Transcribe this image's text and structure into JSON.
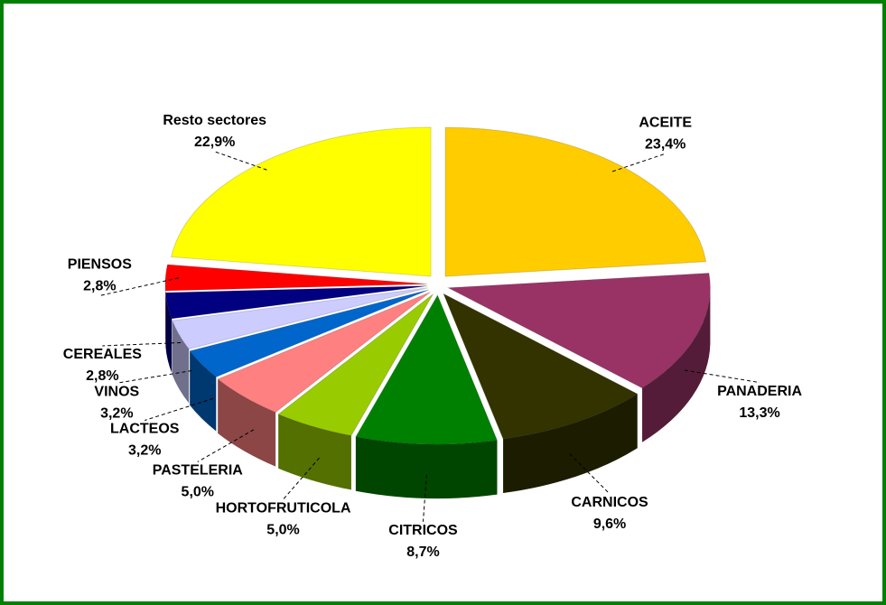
{
  "chart_data": {
    "type": "pie",
    "categories": [
      "ACEITE",
      "PANADERIA",
      "CARNICOS",
      "CITRICOS",
      "HORTOFRUTICOLA",
      "PASTELERIA",
      "LACTEOS",
      "VINOS",
      "CEREALES",
      "PIENSOS",
      "Resto sectores"
    ],
    "values": [
      23.4,
      13.3,
      9.6,
      8.7,
      5.0,
      5.0,
      3.2,
      3.2,
      2.8,
      2.8,
      22.9
    ],
    "value_labels": [
      "23,4%",
      "13,3%",
      "9,6%",
      "8,7%",
      "5,0%",
      "5,0%",
      "3,2%",
      "3,2%",
      "2,8%",
      "2,8%",
      "22,9%"
    ],
    "colors": [
      "#FFCC00",
      "#993366",
      "#333300",
      "#008000",
      "#99CC00",
      "#FF8080",
      "#0066CC",
      "#CCCCFF",
      "#000080",
      "#FF0000",
      "#FFFF00"
    ]
  }
}
